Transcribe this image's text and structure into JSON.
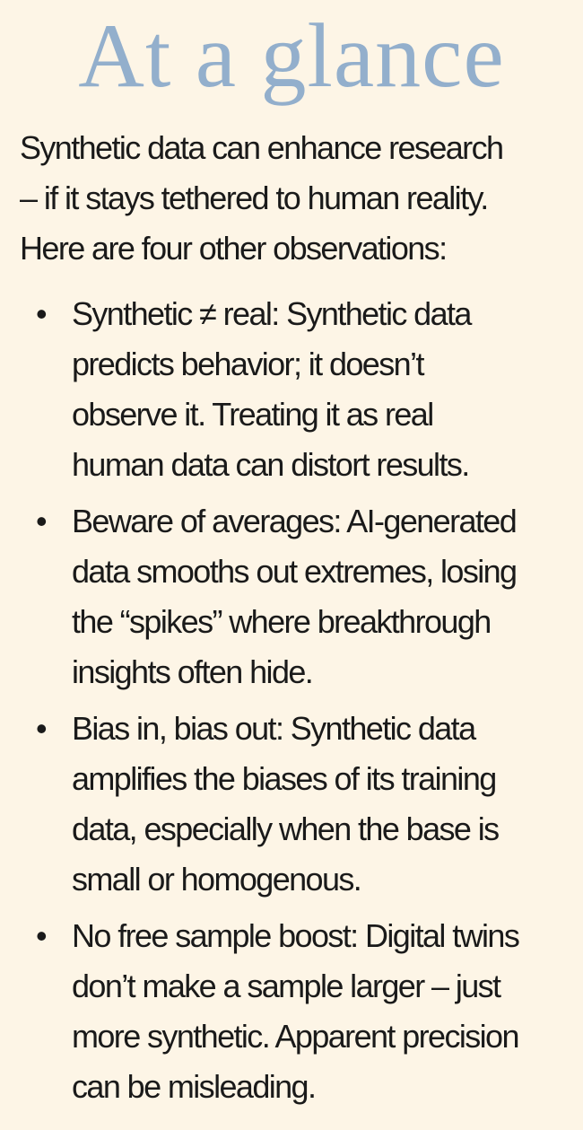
{
  "title": "At a glance",
  "intro_lines": [
    "Synthetic data can enhance research",
    "– if it stays tethered to human reality.",
    "Here are four other observations:"
  ],
  "bullet_glyph": "•",
  "items": [
    {
      "lines": [
        "Synthetic ≠ real: Synthetic data",
        "predicts behavior; it doesn’t",
        "observe it. Treating it as real",
        "human data can distort results."
      ]
    },
    {
      "lines": [
        "Beware of averages: AI-generated",
        "data smooths out extremes, losing",
        "the “spikes” where breakthrough",
        "insights often hide."
      ]
    },
    {
      "lines": [
        "Bias in, bias out: Synthetic data",
        "amplifies the biases of its training",
        "data, especially when the base is",
        "small or homogenous."
      ]
    },
    {
      "lines": [
        "No free sample boost: Digital twins",
        "don’t make a sample larger – just",
        "more synthetic. Apparent precision",
        "can be misleading."
      ]
    }
  ],
  "colors": {
    "background": "#fdf5e6",
    "title": "#93afcc",
    "text": "#1a1a1a"
  }
}
